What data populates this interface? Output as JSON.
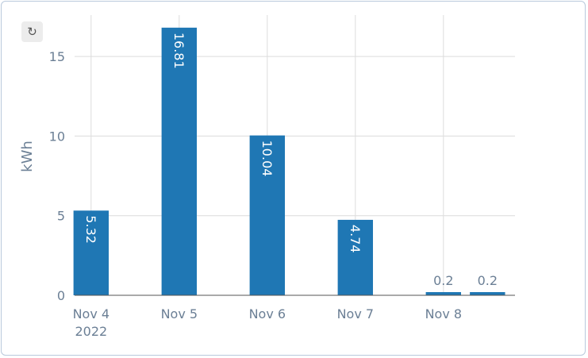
{
  "toolbar": {
    "reset_icon": "↻"
  },
  "chart_data": {
    "type": "bar",
    "ylabel": "kWh",
    "ylim": [
      0,
      17.6
    ],
    "yticks": [
      0,
      5,
      10,
      15
    ],
    "xticks": [
      {
        "label": "Nov 4",
        "sub": "2022",
        "date": "2022-11-04"
      },
      {
        "label": "Nov 5",
        "sub": "",
        "date": "2022-11-05"
      },
      {
        "label": "Nov 6",
        "sub": "",
        "date": "2022-11-06"
      },
      {
        "label": "Nov 7",
        "sub": "",
        "date": "2022-11-07"
      },
      {
        "label": "Nov 8",
        "sub": "",
        "date": "2022-11-08"
      }
    ],
    "xlim": [
      "2022-11-03T19:30",
      "2022-11-08T19:30"
    ],
    "bars": [
      {
        "x": "2022-11-04",
        "value": 5.32,
        "label": "5.32"
      },
      {
        "x": "2022-11-05",
        "value": 16.81,
        "label": "16.81"
      },
      {
        "x": "2022-11-06",
        "value": 10.04,
        "label": "10.04"
      },
      {
        "x": "2022-11-07",
        "value": 4.74,
        "label": "4.74"
      },
      {
        "x": "2022-11-08",
        "value": 0.2,
        "label": "0.2"
      },
      {
        "x": "2022-11-08T12:00",
        "value": 0.2,
        "label": "0.2"
      }
    ],
    "bar_color": "#1f77b4",
    "grid": true
  }
}
